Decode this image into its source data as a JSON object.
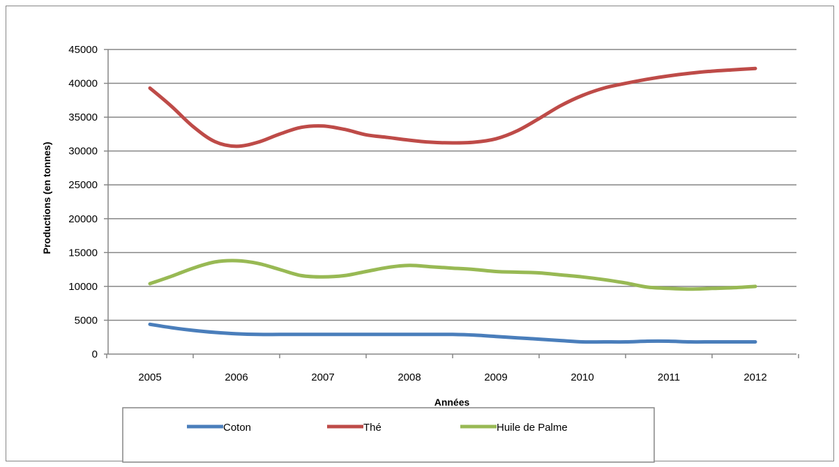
{
  "chart_data": {
    "type": "line",
    "title": "",
    "xlabel": "Années",
    "ylabel": "Productions (en tonnes)",
    "x": [
      2005,
      2005.25,
      2005.5,
      2005.75,
      2006,
      2006.25,
      2006.5,
      2006.75,
      2007,
      2007.25,
      2007.5,
      2007.75,
      2008,
      2008.25,
      2008.5,
      2008.75,
      2009,
      2009.25,
      2009.5,
      2009.75,
      2010,
      2010.25,
      2010.5,
      2010.75,
      2011,
      2011.25,
      2011.5,
      2011.75,
      2012
    ],
    "x_ticks": [
      "2005",
      "2006",
      "2007",
      "2008",
      "2009",
      "2010",
      "2011",
      "2012"
    ],
    "ylim": [
      0,
      45000
    ],
    "y_ticks": [
      "0",
      "5000",
      "10000",
      "15000",
      "20000",
      "25000",
      "30000",
      "35000",
      "40000",
      "45000"
    ],
    "grid": true,
    "legend_position": "bottom",
    "series": [
      {
        "name": "Coton",
        "color": "#4a7ebb",
        "values": [
          4400,
          3900,
          3500,
          3200,
          3000,
          2900,
          2900,
          2900,
          2900,
          2900,
          2900,
          2900,
          2900,
          2900,
          2900,
          2800,
          2600,
          2400,
          2200,
          2000,
          1800,
          1800,
          1800,
          1900,
          1900,
          1800,
          1800,
          1800,
          1800
        ]
      },
      {
        "name": "Thé",
        "color": "#be4b48",
        "values": [
          39300,
          36600,
          33600,
          31400,
          30700,
          31300,
          32500,
          33500,
          33700,
          33200,
          32400,
          32000,
          31600,
          31300,
          31200,
          31300,
          31800,
          33000,
          34800,
          36700,
          38200,
          39300,
          40000,
          40600,
          41100,
          41500,
          41800,
          42000,
          42200
        ]
      },
      {
        "name": "Huile de Palme",
        "color": "#98b954",
        "values": [
          10400,
          11500,
          12700,
          13600,
          13800,
          13400,
          12500,
          11600,
          11400,
          11600,
          12200,
          12800,
          13100,
          12900,
          12700,
          12500,
          12200,
          12100,
          12000,
          11700,
          11400,
          11000,
          10500,
          9900,
          9700,
          9600,
          9700,
          9800,
          10000
        ]
      }
    ]
  }
}
